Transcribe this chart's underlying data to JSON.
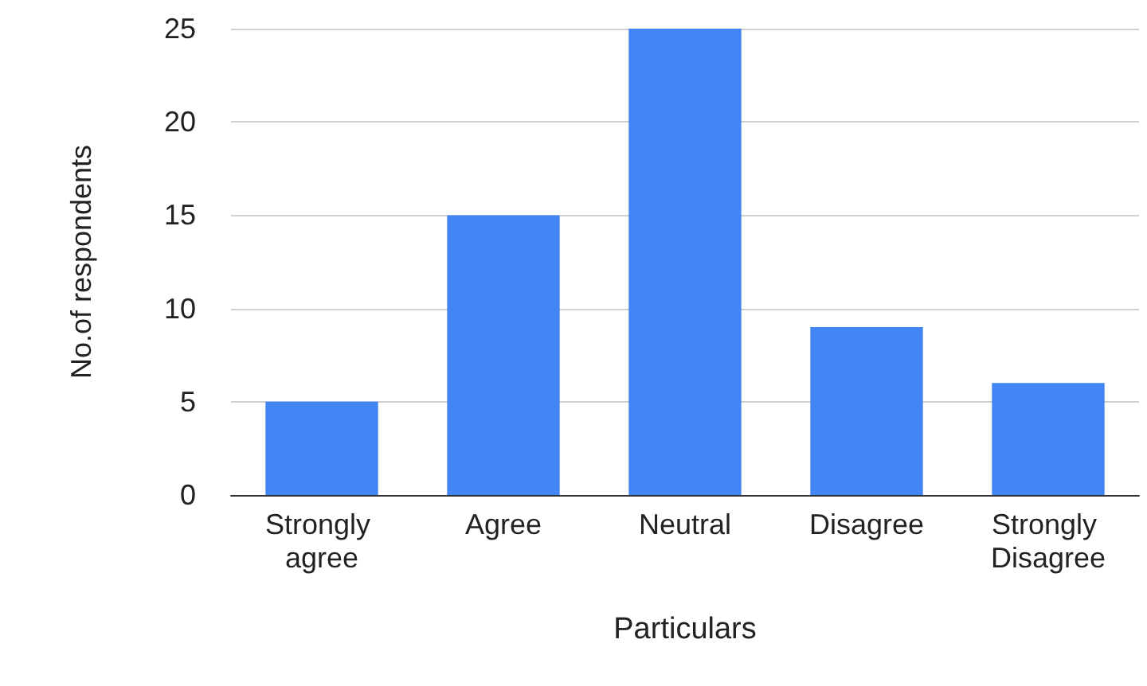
{
  "chart_data": {
    "type": "bar",
    "xlabel": "Particulars",
    "ylabel": "No.of respondents",
    "categories": [
      "Strongly agree",
      "Agree",
      "Neutral",
      "Disagree",
      "Strongly Disagree"
    ],
    "values": [
      5,
      15,
      25,
      9,
      6
    ],
    "color": "#4285f4",
    "ylim": [
      0,
      25
    ],
    "yticks": [
      0,
      5,
      10,
      15,
      20,
      25
    ],
    "grid": "y"
  }
}
